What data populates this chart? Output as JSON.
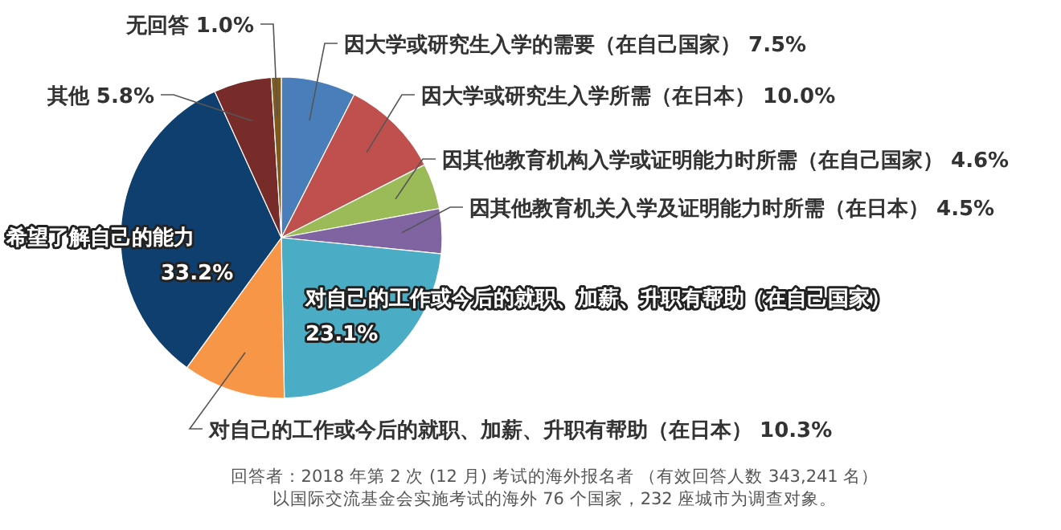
{
  "chart_data": {
    "type": "pie",
    "categories": [
      "因大学或研究生入学的需要（在自己国家）",
      "因大学或研究生入学所需（在日本）",
      "因其他教育机构入学或证明能力时所需（在自己国家）",
      "因其他教育机关入学及证明能力时所需（在日本）",
      "对自己的工作或今后的就职、加薪、升职有帮助（在自己国家）",
      "对自己的工作或今后的就职、加薪、升职有帮助（在日本）",
      "希望了解自己的能力",
      "其他",
      "无回答"
    ],
    "values": [
      7.5,
      10.0,
      4.6,
      4.5,
      23.1,
      10.3,
      33.2,
      5.8,
      1.0
    ],
    "value_labels": [
      "7.5%",
      "10.0%",
      "4.6%",
      "4.5%",
      "23.1%",
      "10.3%",
      "33.2%",
      "5.8%",
      "1.0%"
    ],
    "colors": [
      "#4a7ebb",
      "#c0504d",
      "#9bbb59",
      "#8064a2",
      "#4bacc6",
      "#f79646",
      "#0f3f6e",
      "#772c2a",
      "#7f5a1e"
    ],
    "annotations": [
      "回答者：2018 年第 2 次 (12 月) 考试的海外报名者 （有效回答人数 343,241 名）",
      "以国际交流基金会实施考试的海外 76 个国家，232 座城市为调查对象。"
    ]
  }
}
